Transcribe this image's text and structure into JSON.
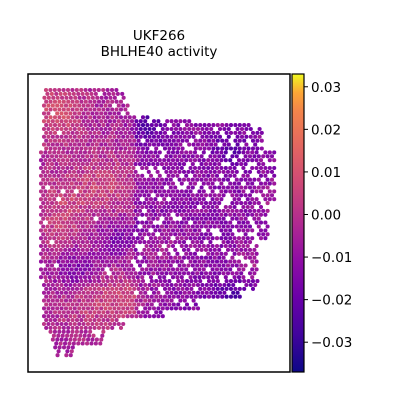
{
  "chart_data": {
    "type": "heatmap",
    "subtype": "spatial-spot-map",
    "title": "UKF266",
    "subtitle": "BHLHE40 activity",
    "xlabel": "",
    "ylabel": "",
    "grid": false,
    "axis_ticks_shown": false,
    "colormap": "plasma",
    "colorbar": {
      "vmin": -0.037,
      "vmax": 0.033,
      "ticks": [
        0.03,
        0.02,
        0.01,
        0.0,
        -0.01,
        -0.02,
        -0.03
      ],
      "tick_labels": [
        "0.03",
        "0.02",
        "0.01",
        "0.00",
        "−0.01",
        "−0.02",
        "−0.03"
      ],
      "placement": "right"
    },
    "colors": {
      "low": "#0d0887",
      "high": "#f0f921",
      "frame": "#000000",
      "background": "#ffffff"
    }
  }
}
